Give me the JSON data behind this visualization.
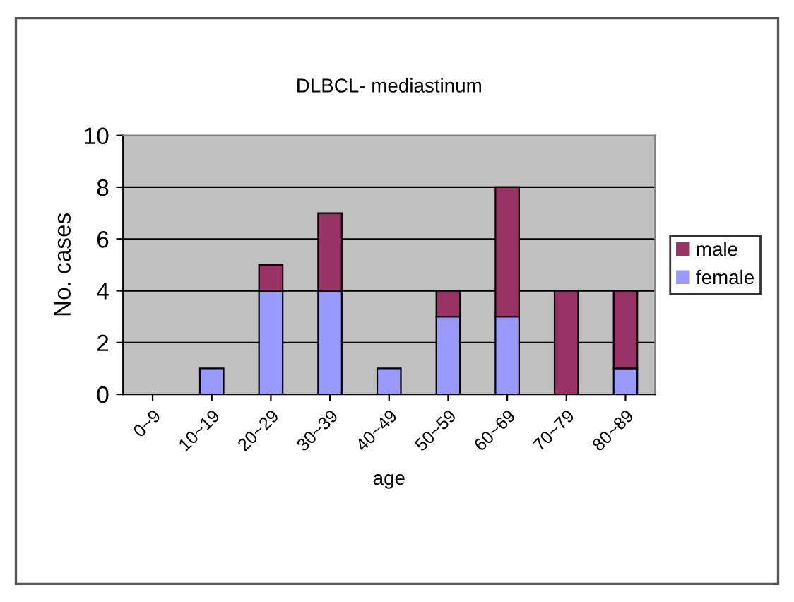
{
  "chart_data": {
    "type": "bar",
    "title": "DLBCL- mediastinum",
    "xlabel": "age",
    "ylabel": "No. cases",
    "categories": [
      "0~9",
      "10~19",
      "20~29",
      "30~39",
      "40~49",
      "50~59",
      "60~69",
      "70~79",
      "80~89"
    ],
    "stacked": true,
    "series": [
      {
        "name": "female",
        "color": "#9999ff",
        "values": [
          0,
          1,
          4,
          4,
          1,
          3,
          3,
          0,
          1
        ]
      },
      {
        "name": "male",
        "color": "#993366",
        "values": [
          0,
          0,
          1,
          3,
          0,
          1,
          5,
          4,
          3
        ]
      }
    ],
    "ylim": [
      0,
      10
    ],
    "yticks": [
      0,
      2,
      4,
      6,
      8,
      10
    ],
    "grid": "y",
    "legend": "right"
  }
}
